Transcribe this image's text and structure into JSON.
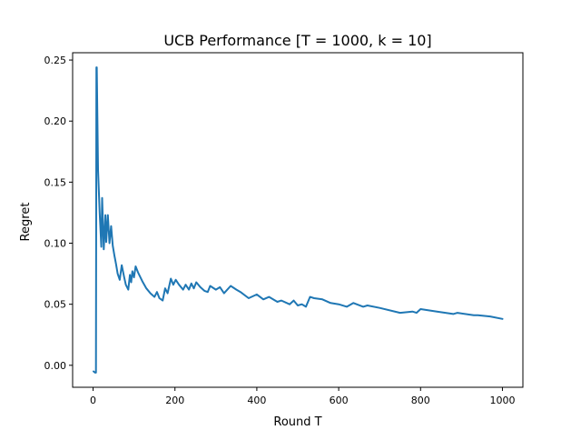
{
  "chart_data": {
    "type": "line",
    "title": "UCB Performance [T = 1000, k = 10]",
    "xlabel": "Round T",
    "ylabel": "Regret",
    "xlim": [
      -50,
      1050
    ],
    "ylim": [
      -0.018,
      0.256
    ],
    "xticks": [
      0,
      200,
      400,
      600,
      800,
      1000
    ],
    "xtick_labels": [
      "0",
      "200",
      "400",
      "600",
      "800",
      "1000"
    ],
    "yticks": [
      0.0,
      0.05,
      0.1,
      0.15,
      0.2,
      0.25
    ],
    "ytick_labels": [
      "0.00",
      "0.05",
      "0.10",
      "0.15",
      "0.20",
      "0.25"
    ],
    "grid": false,
    "line_color": "#1f77b4",
    "series": [
      {
        "x": [
          1,
          5,
          7,
          8,
          9,
          12,
          16,
          20,
          22,
          26,
          30,
          32,
          36,
          40,
          44,
          48,
          52,
          56,
          60,
          65,
          70,
          76,
          80,
          86,
          90,
          93,
          96,
          100,
          104,
          110,
          120,
          130,
          140,
          150,
          156,
          162,
          170,
          176,
          182,
          190,
          196,
          202,
          210,
          220,
          226,
          234,
          240,
          246,
          252,
          262,
          272,
          280,
          286,
          300,
          310,
          320,
          336,
          350,
          360,
          380,
          400,
          416,
          430,
          450,
          460,
          480,
          490,
          500,
          510,
          520,
          530,
          540,
          560,
          580,
          600,
          620,
          636,
          660,
          670,
          700,
          750,
          780,
          790,
          800,
          840,
          880,
          890,
          930,
          940,
          970,
          1000
        ],
        "y": [
          -0.005,
          -0.006,
          -0.006,
          0.244,
          0.244,
          0.16,
          0.125,
          0.097,
          0.137,
          0.095,
          0.123,
          0.101,
          0.123,
          0.1,
          0.114,
          0.098,
          0.09,
          0.083,
          0.075,
          0.07,
          0.082,
          0.072,
          0.066,
          0.062,
          0.074,
          0.068,
          0.077,
          0.072,
          0.081,
          0.076,
          0.069,
          0.063,
          0.059,
          0.056,
          0.06,
          0.055,
          0.053,
          0.063,
          0.059,
          0.071,
          0.066,
          0.07,
          0.066,
          0.062,
          0.066,
          0.062,
          0.067,
          0.063,
          0.068,
          0.064,
          0.061,
          0.06,
          0.065,
          0.062,
          0.064,
          0.059,
          0.065,
          0.062,
          0.06,
          0.055,
          0.058,
          0.054,
          0.056,
          0.052,
          0.053,
          0.05,
          0.053,
          0.049,
          0.05,
          0.048,
          0.056,
          0.055,
          0.054,
          0.051,
          0.05,
          0.048,
          0.051,
          0.048,
          0.049,
          0.047,
          0.043,
          0.044,
          0.043,
          0.046,
          0.044,
          0.042,
          0.043,
          0.041,
          0.041,
          0.04,
          0.038
        ]
      }
    ]
  }
}
